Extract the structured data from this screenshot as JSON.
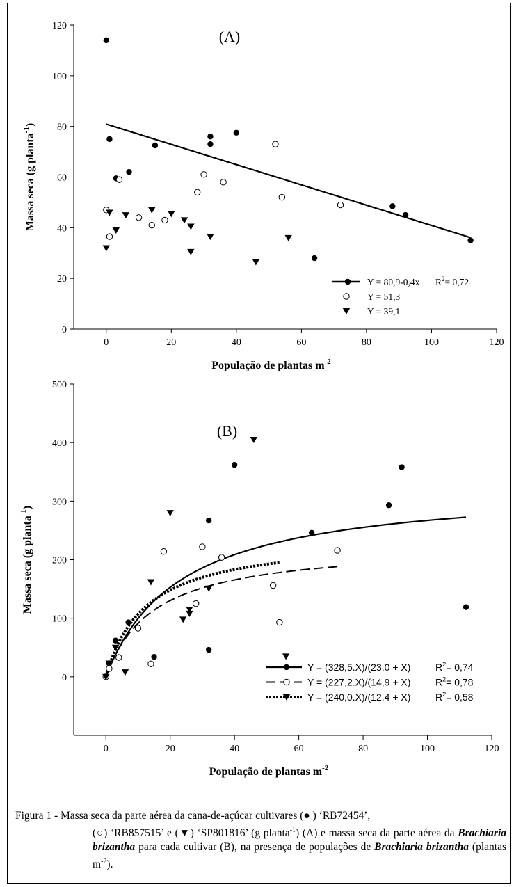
{
  "chart_data": [
    {
      "type": "scatter",
      "panel_label": "(A)",
      "xlabel": "População de plantas m",
      "xlabel_sup": "-2",
      "ylabel": "Massa seca (g planta",
      "ylabel_sup": "-1",
      "ylabel_close": ")",
      "xlim": [
        -10,
        120
      ],
      "ylim": [
        0,
        120
      ],
      "xticks": [
        0,
        20,
        40,
        60,
        80,
        100,
        120
      ],
      "yticks": [
        0,
        20,
        40,
        60,
        80,
        100,
        120
      ],
      "grid": false,
      "legend_position": "bottom-right",
      "series": [
        {
          "marker": "filled-circle",
          "legend": "Y = 80,9-0,4x",
          "r2_label": "R",
          "r2_value": "= 0,72",
          "fit": {
            "kind": "linear",
            "a": 80.9,
            "b": -0.4,
            "x_range": [
              0,
              112
            ]
          },
          "points": [
            [
              0,
              114
            ],
            [
              1,
              75
            ],
            [
              3,
              59.5
            ],
            [
              7,
              62
            ],
            [
              15,
              72.5
            ],
            [
              32,
              76
            ],
            [
              32,
              73
            ],
            [
              40,
              77.5
            ],
            [
              64,
              28
            ],
            [
              88,
              48.5
            ],
            [
              92,
              45
            ],
            [
              112,
              35
            ]
          ]
        },
        {
          "marker": "open-circle",
          "legend": "Y = 51,3",
          "points": [
            [
              0,
              47
            ],
            [
              1,
              36.5
            ],
            [
              4,
              59
            ],
            [
              10,
              44
            ],
            [
              14,
              41
            ],
            [
              18,
              43
            ],
            [
              28,
              54
            ],
            [
              30,
              61
            ],
            [
              36,
              58
            ],
            [
              52,
              73
            ],
            [
              54,
              52
            ],
            [
              72,
              49
            ]
          ]
        },
        {
          "marker": "filled-triangle-down",
          "legend": "Y = 39,1",
          "points": [
            [
              0,
              32
            ],
            [
              1,
              46
            ],
            [
              3,
              39
            ],
            [
              6,
              45
            ],
            [
              14,
              47
            ],
            [
              20,
              45.5
            ],
            [
              24,
              43
            ],
            [
              26,
              40.5
            ],
            [
              26,
              30.5
            ],
            [
              32,
              36.5
            ],
            [
              46,
              26.5
            ],
            [
              56,
              36
            ]
          ]
        }
      ]
    },
    {
      "type": "scatter",
      "panel_label": "(B)",
      "xlabel": "População de plantas m",
      "xlabel_sup": "-2",
      "ylabel": "Massa seca (g planta",
      "ylabel_sup": "-1",
      "ylabel_close": ")",
      "xlim": [
        -10,
        120
      ],
      "ylim": [
        -100,
        500
      ],
      "xticks": [
        0,
        20,
        40,
        60,
        80,
        100,
        120
      ],
      "yticks": [
        0,
        100,
        200,
        300,
        400,
        500
      ],
      "grid": false,
      "legend_position": "bottom-right",
      "series": [
        {
          "marker": "filled-circle",
          "line": "solid",
          "legend": "Y = (328,5.X)/(23,0 + X)",
          "r2_label": "R",
          "r2_value": "= 0,74",
          "fit": {
            "kind": "hyperbolic",
            "a": 328.5,
            "b": 23.0,
            "x_range": [
              0,
              112
            ]
          },
          "points": [
            [
              0,
              0
            ],
            [
              1,
              23
            ],
            [
              3,
              62
            ],
            [
              7,
              93
            ],
            [
              15,
              34
            ],
            [
              32,
              267
            ],
            [
              32,
              46
            ],
            [
              40,
              362
            ],
            [
              64,
              246
            ],
            [
              88,
              293
            ],
            [
              92,
              358
            ],
            [
              112,
              119
            ]
          ]
        },
        {
          "marker": "open-circle",
          "line": "dashed",
          "legend": "Y = (227,2.X)/(14,9 + X)",
          "r2_label": "R",
          "r2_value": "= 0,78",
          "fit": {
            "kind": "hyperbolic",
            "a": 227.2,
            "b": 14.9,
            "x_range": [
              0,
              72
            ]
          },
          "points": [
            [
              0,
              0
            ],
            [
              1,
              14
            ],
            [
              4,
              33
            ],
            [
              10,
              83
            ],
            [
              14,
              22
            ],
            [
              18,
              214
            ],
            [
              28,
              125
            ],
            [
              30,
              222
            ],
            [
              36,
              204
            ],
            [
              52,
              156
            ],
            [
              54,
              93
            ],
            [
              72,
              216
            ]
          ]
        },
        {
          "marker": "filled-triangle-down",
          "line": "dotted",
          "legend": "Y = (240,0.X)/(12,4 + X)",
          "r2_label": "R",
          "r2_value": "= 0,58",
          "fit": {
            "kind": "hyperbolic",
            "a": 240.0,
            "b": 12.4,
            "x_range": [
              0,
              54
            ]
          },
          "points": [
            [
              0,
              0
            ],
            [
              1,
              23
            ],
            [
              3,
              50
            ],
            [
              6,
              8
            ],
            [
              14,
              162
            ],
            [
              20,
              280
            ],
            [
              24,
              98
            ],
            [
              26,
              108
            ],
            [
              26,
              115
            ],
            [
              32,
              151
            ],
            [
              46,
              405
            ],
            [
              56,
              35
            ]
          ]
        }
      ]
    }
  ],
  "caption": {
    "lead": "Figura 1 - Massa seca da parte aérea da cana-de-açúcar cultivares (● ) ‘RB72454’,",
    "line2": "(○) ‘RB857515’ e (▼) ‘SP801816’ (g planta",
    "line2_sup": "-1",
    "line2_rest": ") (A) e massa seca da",
    "line3_pre": "parte aérea da ",
    "species": "Brachiaria brizantha",
    "line3_rest": " para cada cultivar (B), na presença",
    "line4_pre": "de populações de ",
    "line4_rest": " (plantas m",
    "line4_sup": "-2",
    "line4_end": ")."
  }
}
